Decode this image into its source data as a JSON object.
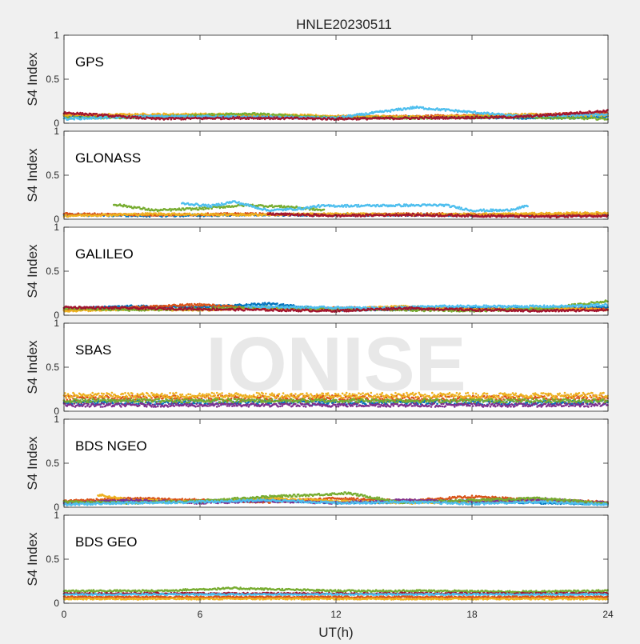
{
  "figure": {
    "title": "HNLE20230511",
    "xlabel": "UT(h)",
    "watermark": "IONISE"
  },
  "chart_data": {
    "type": "scatter",
    "title": "HNLE20230511",
    "xlabel": "UT(h)",
    "xlim": [
      0,
      24
    ],
    "xticks": [
      0,
      6,
      12,
      18,
      24
    ],
    "series_colors": [
      "#0072BD",
      "#D95319",
      "#EDB120",
      "#7E2F8E",
      "#77AC30",
      "#4DBEEE",
      "#A2142F"
    ],
    "panels": [
      {
        "name": "GPS",
        "ylabel": "S4 Index",
        "ylim": [
          0,
          1
        ],
        "yticks": [
          0,
          0.5,
          1
        ],
        "series": [
          {
            "color": "#0072BD",
            "x": [
              0,
              4,
              8,
              12,
              16,
              20,
              24
            ],
            "y": [
              0.08,
              0.07,
              0.08,
              0.06,
              0.07,
              0.06,
              0.07
            ]
          },
          {
            "color": "#D95319",
            "x": [
              0,
              4,
              8,
              12,
              16,
              20,
              24
            ],
            "y": [
              0.1,
              0.08,
              0.09,
              0.07,
              0.08,
              0.09,
              0.12
            ]
          },
          {
            "color": "#EDB120",
            "x": [
              0,
              4,
              8,
              12,
              16,
              20,
              24
            ],
            "y": [
              0.09,
              0.1,
              0.1,
              0.08,
              0.07,
              0.1,
              0.09
            ]
          },
          {
            "color": "#77AC30",
            "x": [
              0,
              4,
              8,
              12,
              16,
              20,
              24
            ],
            "y": [
              0.06,
              0.07,
              0.11,
              0.06,
              0.06,
              0.07,
              0.05
            ]
          },
          {
            "color": "#4DBEEE",
            "x": [
              0,
              4,
              8,
              12,
              15.5,
              20,
              24
            ],
            "y": [
              0.05,
              0.08,
              0.07,
              0.06,
              0.18,
              0.08,
              0.1
            ]
          },
          {
            "color": "#A2142F",
            "x": [
              0,
              4,
              8,
              12,
              16,
              20,
              24
            ],
            "y": [
              0.12,
              0.05,
              0.06,
              0.05,
              0.06,
              0.07,
              0.14
            ]
          }
        ]
      },
      {
        "name": "GLONASS",
        "ylabel": "S4 Index",
        "ylim": [
          0,
          1
        ],
        "yticks": [
          0,
          0.5,
          1
        ],
        "series": [
          {
            "color": "#0072BD",
            "x": [
              0,
              4,
              8,
              12,
              16,
              20,
              24
            ],
            "y": [
              0.05,
              0.04,
              0.05,
              0.05,
              0.05,
              0.04,
              0.05
            ]
          },
          {
            "color": "#D95319",
            "x": [
              0,
              4,
              8,
              12,
              16,
              20,
              24
            ],
            "y": [
              0.06,
              0.05,
              0.06,
              0.05,
              0.06,
              0.05,
              0.06
            ]
          },
          {
            "color": "#EDB120",
            "x": [
              0,
              4,
              8,
              12,
              16,
              20,
              24
            ],
            "y": [
              0.04,
              0.06,
              0.05,
              0.06,
              0.05,
              0.06,
              0.07
            ]
          },
          {
            "color": "#77AC30",
            "x": [
              2.2,
              4,
              6,
              8,
              10,
              11.5
            ],
            "y": [
              0.17,
              0.1,
              0.12,
              0.16,
              0.14,
              0.1
            ]
          },
          {
            "color": "#4DBEEE",
            "x": [
              5.2,
              6.5,
              7.5,
              9,
              10.5,
              11.2,
              16.8,
              18,
              19.5,
              20.5
            ],
            "y": [
              0.18,
              0.15,
              0.2,
              0.1,
              0.12,
              0.15,
              0.16,
              0.1,
              0.1,
              0.15
            ]
          },
          {
            "color": "#A2142F",
            "x": [
              9,
              12,
              15,
              18,
              21,
              24
            ],
            "y": [
              0.06,
              0.04,
              0.05,
              0.04,
              0.03,
              0.04
            ]
          }
        ]
      },
      {
        "name": "GALILEO",
        "ylabel": "S4 Index",
        "ylim": [
          0,
          1
        ],
        "yticks": [
          0,
          0.5,
          1
        ],
        "series": [
          {
            "color": "#0072BD",
            "x": [
              0,
              3,
              6,
              9,
              12,
              15,
              18,
              21,
              24
            ],
            "y": [
              0.07,
              0.1,
              0.09,
              0.13,
              0.06,
              0.07,
              0.08,
              0.07,
              0.09
            ]
          },
          {
            "color": "#D95319",
            "x": [
              0,
              3,
              6,
              9,
              12,
              15,
              18,
              21,
              24
            ],
            "y": [
              0.06,
              0.09,
              0.12,
              0.07,
              0.08,
              0.09,
              0.07,
              0.06,
              0.07
            ]
          },
          {
            "color": "#EDB120",
            "x": [
              0,
              3,
              6,
              9,
              12,
              15,
              18,
              21,
              24
            ],
            "y": [
              0.05,
              0.07,
              0.06,
              0.08,
              0.06,
              0.1,
              0.06,
              0.08,
              0.06
            ]
          },
          {
            "color": "#77AC30",
            "x": [
              0,
              3,
              6,
              9,
              12,
              15,
              18,
              21,
              24
            ],
            "y": [
              0.08,
              0.06,
              0.07,
              0.09,
              0.07,
              0.06,
              0.05,
              0.07,
              0.16
            ]
          },
          {
            "color": "#4DBEEE",
            "x": [
              8,
              10.5,
              14,
              16.5,
              22,
              24
            ],
            "y": [
              0.1,
              0.09,
              0.08,
              0.1,
              0.1,
              0.12
            ]
          },
          {
            "color": "#A2142F",
            "x": [
              0,
              3,
              6,
              9,
              12,
              15,
              18,
              21,
              24
            ],
            "y": [
              0.09,
              0.08,
              0.07,
              0.06,
              0.05,
              0.08,
              0.06,
              0.05,
              0.06
            ]
          }
        ]
      },
      {
        "name": "SBAS",
        "ylabel": "S4 Index",
        "ylim": [
          0,
          1
        ],
        "yticks": [
          0,
          0.5,
          1
        ],
        "series": [
          {
            "color": "#0072BD",
            "x": [
              0,
              24
            ],
            "y": [
              0.1,
              0.1
            ],
            "spread": 0.025
          },
          {
            "color": "#D95319",
            "x": [
              0,
              24
            ],
            "y": [
              0.15,
              0.15
            ],
            "spread": 0.03
          },
          {
            "color": "#EDB120",
            "x": [
              0,
              24
            ],
            "y": [
              0.18,
              0.18
            ],
            "spread": 0.03
          },
          {
            "color": "#7E2F8E",
            "x": [
              0,
              24
            ],
            "y": [
              0.07,
              0.07
            ],
            "spread": 0.02
          },
          {
            "color": "#77AC30",
            "x": [
              0,
              24
            ],
            "y": [
              0.12,
              0.12
            ],
            "spread": 0.02
          }
        ]
      },
      {
        "name": "BDS NGEO",
        "ylabel": "S4 Index",
        "ylim": [
          0,
          1
        ],
        "yticks": [
          0,
          0.5,
          1
        ],
        "series": [
          {
            "color": "#0072BD",
            "x": [
              0,
              3,
              6,
              9,
              12,
              15,
              18,
              21,
              24
            ],
            "y": [
              0.05,
              0.06,
              0.07,
              0.08,
              0.05,
              0.06,
              0.07,
              0.05,
              0.04
            ]
          },
          {
            "color": "#D95319",
            "x": [
              0,
              3,
              6,
              9,
              12,
              15,
              18,
              21,
              24
            ],
            "y": [
              0.07,
              0.1,
              0.08,
              0.06,
              0.1,
              0.07,
              0.12,
              0.08,
              0.06
            ]
          },
          {
            "color": "#EDB120",
            "x": [
              1.5,
              3,
              6,
              9,
              12,
              15,
              18,
              21,
              24
            ],
            "y": [
              0.14,
              0.08,
              0.06,
              0.1,
              0.07,
              0.05,
              0.06,
              0.08,
              0.05
            ]
          },
          {
            "color": "#7E2F8E",
            "x": [
              0,
              3,
              6,
              9,
              12,
              15,
              18,
              21,
              24
            ],
            "y": [
              0.04,
              0.08,
              0.05,
              0.07,
              0.05,
              0.08,
              0.06,
              0.09,
              0.05
            ]
          },
          {
            "color": "#77AC30",
            "x": [
              0,
              3,
              6,
              9,
              11,
              12.5,
              15,
              18,
              21,
              24
            ],
            "y": [
              0.06,
              0.05,
              0.07,
              0.12,
              0.14,
              0.16,
              0.05,
              0.08,
              0.1,
              0.04
            ]
          },
          {
            "color": "#4DBEEE",
            "x": [
              0,
              3,
              6,
              9,
              12,
              15,
              18,
              21,
              24
            ],
            "y": [
              0.03,
              0.05,
              0.06,
              0.08,
              0.05,
              0.06,
              0.04,
              0.06,
              0.03
            ]
          }
        ]
      },
      {
        "name": "BDS GEO",
        "ylabel": "S4 Index",
        "ylim": [
          0,
          1
        ],
        "yticks": [
          0,
          0.5,
          1
        ],
        "series": [
          {
            "color": "#77AC30",
            "x": [
              0,
              4,
              7.5,
              12,
              16,
              20,
              24
            ],
            "y": [
              0.14,
              0.14,
              0.17,
              0.14,
              0.14,
              0.13,
              0.14
            ],
            "spread": 0.01
          },
          {
            "color": "#A2142F",
            "x": [
              0,
              24
            ],
            "y": [
              0.11,
              0.11
            ],
            "spread": 0.01
          },
          {
            "color": "#4DBEEE",
            "x": [
              0,
              24
            ],
            "y": [
              0.1,
              0.1
            ],
            "spread": 0.008
          },
          {
            "color": "#D95319",
            "x": [
              0,
              24
            ],
            "y": [
              0.07,
              0.07
            ],
            "spread": 0.008
          },
          {
            "color": "#EDB120",
            "x": [
              0,
              24
            ],
            "y": [
              0.05,
              0.05
            ],
            "spread": 0.008
          }
        ]
      }
    ]
  }
}
